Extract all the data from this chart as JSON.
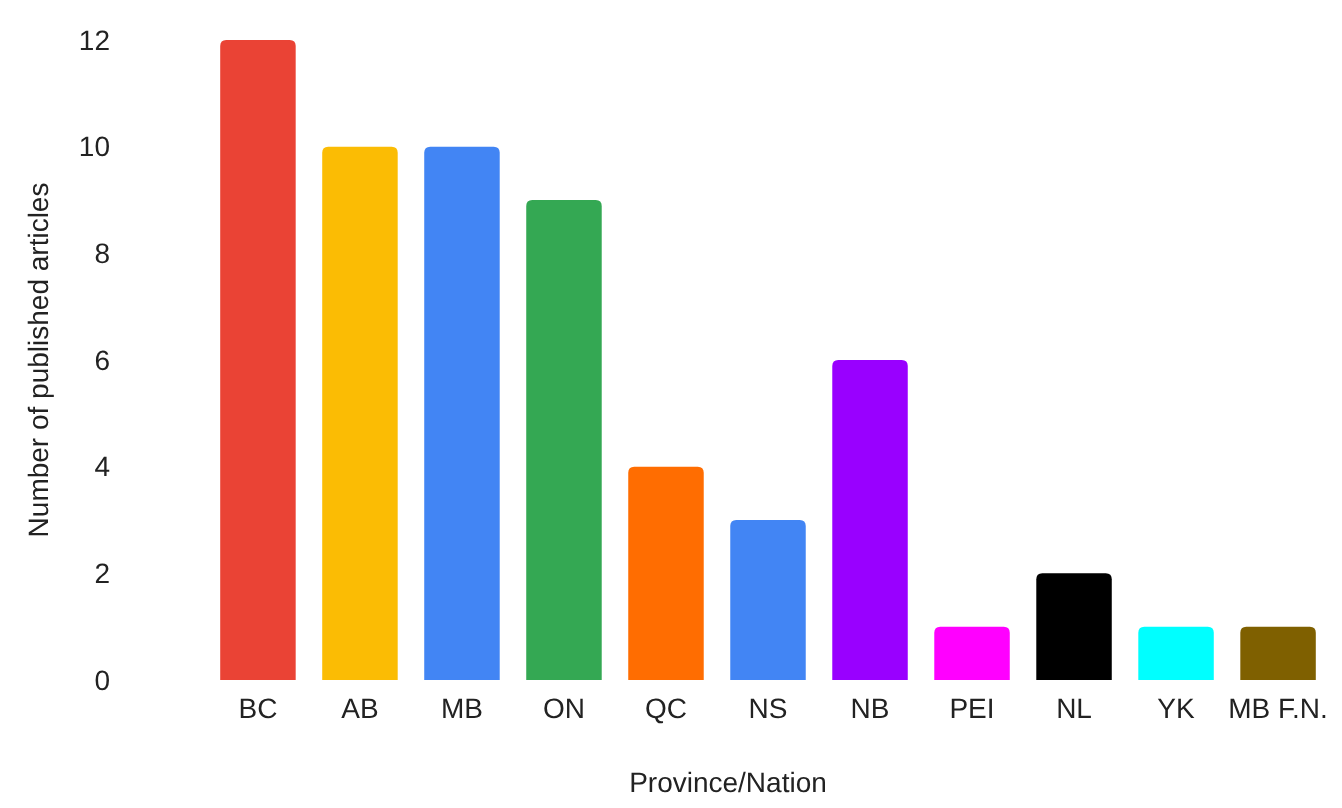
{
  "chart_data": {
    "type": "bar",
    "xlabel": "Province/Nation",
    "ylabel": "Number of published articles",
    "categories": [
      "BC",
      "AB",
      "MB",
      "ON",
      "QC",
      "NS",
      "NB",
      "PEI",
      "NL",
      "YK",
      "MB F.N."
    ],
    "values": [
      12,
      10,
      10,
      9,
      4,
      3,
      6,
      1,
      2,
      1,
      1
    ],
    "colors": [
      "#ea4335",
      "#fbbc04",
      "#4285f4",
      "#34a853",
      "#ff6d01",
      "#4285f4",
      "#9900ff",
      "#ff00ff",
      "#000000",
      "#00ffff",
      "#7f6000"
    ],
    "ylim": [
      0,
      12
    ],
    "yticks": [
      0,
      2,
      4,
      6,
      8,
      10,
      12
    ],
    "grid": false
  }
}
